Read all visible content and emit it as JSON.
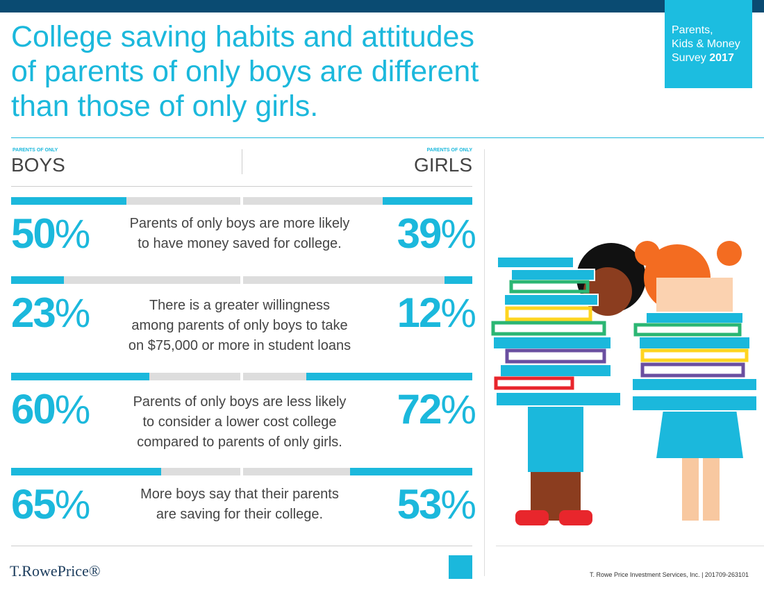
{
  "header": {
    "title_lines": [
      "College saving habits and attitudes",
      "of parents of only boys are different",
      "than those of only girls."
    ],
    "badge": {
      "lines": [
        "Parents,",
        "Kids & Money",
        "Survey"
      ],
      "year": "2017"
    }
  },
  "columns": {
    "kicker": "PARENTS OF ONLY",
    "left": "BOYS",
    "right": "GIRLS"
  },
  "unit": "%",
  "rows": [
    {
      "text": [
        "Parents of only boys are more likely",
        "to have money saved for college."
      ],
      "boys": 50,
      "girls": 39
    },
    {
      "text": [
        "There is a greater willingness",
        "among parents of only boys to take",
        "on $75,000 or more in student loans"
      ],
      "boys": 23,
      "girls": 12
    },
    {
      "text": [
        "Parents of only boys are less likely",
        "to consider a lower cost college",
        "compared to parents of only girls."
      ],
      "boys": 60,
      "girls": 72
    },
    {
      "text": [
        "More boys say that their parents",
        "are saving for their college."
      ],
      "boys": 65,
      "girls": 53
    }
  ],
  "footer": {
    "logo": "T.RowePrice®",
    "credit": "T. Rowe Price Investment Services, Inc. | 201709-263101"
  }
}
